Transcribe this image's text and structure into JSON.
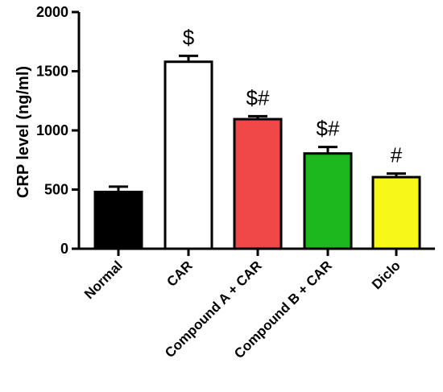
{
  "chart_data": {
    "type": "bar",
    "title": "",
    "xlabel": "",
    "ylabel": "CRP level (ng/ml)",
    "ylim": [
      0,
      2000
    ],
    "yticks": [
      0,
      500,
      1000,
      1500,
      2000
    ],
    "grid": false,
    "categories": [
      "Normal",
      "CAR",
      "Compound A + CAR",
      "Compound B + CAR",
      "Diclo"
    ],
    "values": [
      480,
      1580,
      1095,
      805,
      605
    ],
    "errors": [
      45,
      50,
      25,
      55,
      30
    ],
    "colors": [
      "#000000",
      "#ffffff",
      "#f04848",
      "#1db81d",
      "#f7f71a"
    ],
    "annotations": [
      "",
      "$",
      "$#",
      "$#",
      "#"
    ]
  }
}
